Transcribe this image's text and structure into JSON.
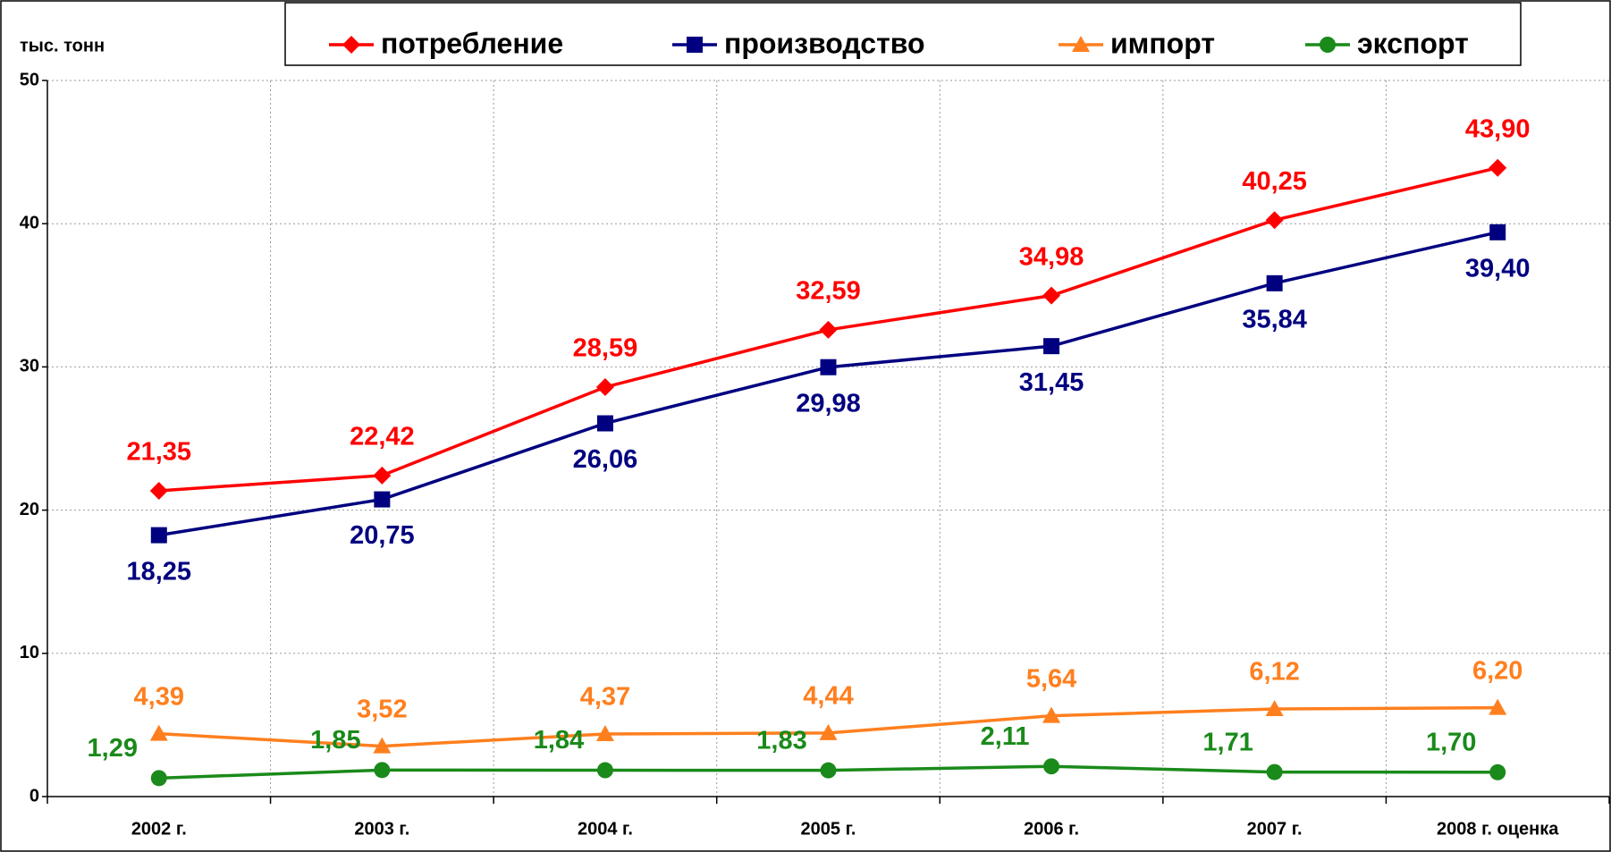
{
  "chart_data": {
    "type": "line",
    "y_label": "тыс. тонн",
    "categories": [
      "2002 г.",
      "2003 г.",
      "2004 г.",
      "2005 г.",
      "2006 г.",
      "2007 г.",
      "2008 г. оценка"
    ],
    "ylim": [
      0,
      50
    ],
    "yticks": [
      0,
      10,
      20,
      30,
      40,
      50
    ],
    "grid": true,
    "series": [
      {
        "name": "потребление",
        "color": "#ff0000",
        "marker": "diamond",
        "values": [
          21.35,
          22.42,
          28.59,
          32.59,
          34.98,
          40.25,
          43.9
        ],
        "value_labels": [
          "21,35",
          "22,42",
          "28,59",
          "32,59",
          "34,98",
          "40,25",
          "43,90"
        ]
      },
      {
        "name": "производство",
        "color": "#000080",
        "marker": "square",
        "values": [
          18.25,
          20.75,
          26.06,
          29.98,
          31.45,
          35.84,
          39.4
        ],
        "value_labels": [
          "18,25",
          "20,75",
          "26,06",
          "29,98",
          "31,45",
          "35,84",
          "39,40"
        ]
      },
      {
        "name": "импорт",
        "color": "#ff7f1e",
        "marker": "triangle",
        "values": [
          4.39,
          3.52,
          4.37,
          4.44,
          5.64,
          6.12,
          6.2
        ],
        "value_labels": [
          "4,39",
          "3,52",
          "4,37",
          "4,44",
          "5,64",
          "6,12",
          "6,20"
        ]
      },
      {
        "name": "экспорт",
        "color": "#1a8a1a",
        "marker": "circle",
        "values": [
          1.29,
          1.85,
          1.84,
          1.83,
          2.11,
          1.71,
          1.7
        ],
        "value_labels": [
          "1,29",
          "1,85",
          "1,84",
          "1,83",
          "2,11",
          "1,71",
          "1,70"
        ]
      }
    ]
  }
}
